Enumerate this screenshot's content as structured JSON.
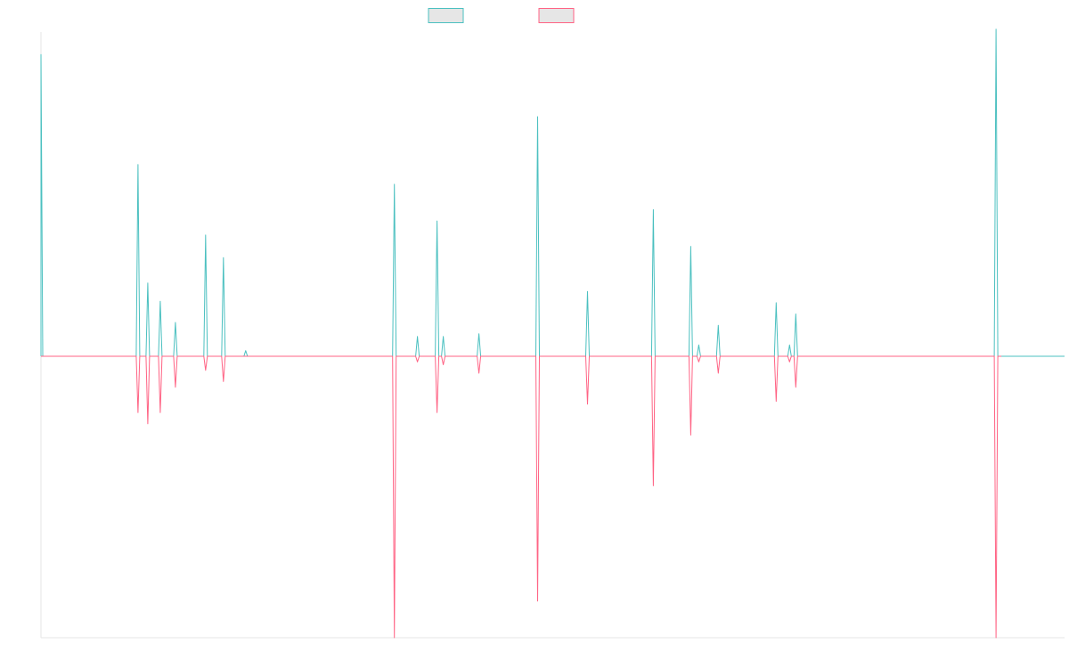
{
  "chart_data": {
    "type": "line",
    "title": "",
    "xlabel": "",
    "ylabel": "",
    "legend": {
      "position": "top",
      "entries": [
        {
          "label": "",
          "color": "#4bc0c0"
        },
        {
          "label": "",
          "color": "#ff6384"
        }
      ]
    },
    "grid": false,
    "xlim": [
      0,
      1150
    ],
    "ylim": [
      -100,
      115
    ],
    "baseline": 0,
    "series": [
      {
        "color": "#4bc0c0",
        "direction": "up",
        "peaks": [
          [
            0,
            107
          ],
          [
            109,
            68
          ],
          [
            120,
            26
          ],
          [
            134,
            19.5
          ],
          [
            151,
            12
          ],
          [
            185,
            43
          ],
          [
            205,
            35
          ],
          [
            230,
            2
          ],
          [
            331,
            0
          ],
          [
            397,
            61
          ],
          [
            423,
            7
          ],
          [
            445,
            48
          ],
          [
            452,
            7
          ],
          [
            492,
            8
          ],
          [
            558,
            85
          ],
          [
            614,
            23
          ],
          [
            688,
            52
          ],
          [
            730,
            39
          ],
          [
            739,
            4
          ],
          [
            761,
            11
          ],
          [
            826,
            19
          ],
          [
            841,
            4
          ],
          [
            848,
            15
          ],
          [
            1073,
            116
          ],
          [
            1077,
            0
          ]
        ]
      },
      {
        "color": "#ff6384",
        "direction": "down",
        "peaks": [
          [
            109,
            20
          ],
          [
            120,
            24
          ],
          [
            134,
            20
          ],
          [
            151,
            11
          ],
          [
            185,
            5
          ],
          [
            205,
            9
          ],
          [
            331,
            0
          ],
          [
            397,
            100
          ],
          [
            423,
            2
          ],
          [
            445,
            20
          ],
          [
            452,
            3
          ],
          [
            492,
            6
          ],
          [
            558,
            87
          ],
          [
            614,
            17
          ],
          [
            688,
            46
          ],
          [
            730,
            28
          ],
          [
            739,
            2
          ],
          [
            761,
            6
          ],
          [
            826,
            16
          ],
          [
            841,
            2
          ],
          [
            848,
            11
          ],
          [
            1073,
            100
          ],
          [
            1077,
            0
          ]
        ]
      }
    ]
  }
}
